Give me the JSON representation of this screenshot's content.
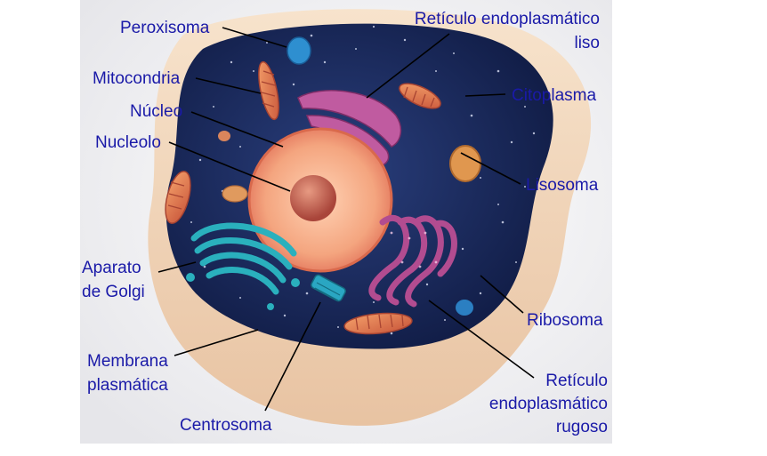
{
  "labels": {
    "peroxisoma": "Peroxisoma",
    "mitocondria": "Mitocondria",
    "nucleo": "Núcleo",
    "nucleolo": "Nucleolo",
    "aparato_1": "Aparato",
    "aparato_2": "de Golgi",
    "membrana_1": "Membrana",
    "membrana_2": "plasmática",
    "centrosoma": "Centrosoma",
    "rel_1": "Retículo endoplasmático",
    "rel_2": "liso",
    "citoplasma": "Citoplasma",
    "lisosoma": "Lisosoma",
    "ribosoma": "Ribosoma",
    "rer_1": "Retículo",
    "rer_2": "endoplasmático",
    "rer_3": "rugoso"
  },
  "colors": {
    "label_text": "#1a1aa8",
    "membrane": "#f1d9c0",
    "cytoplasm": "#1b2d63",
    "nucleus": "#f08a6a",
    "golgi": "#2aa8b4",
    "er": "#b04a8a"
  }
}
